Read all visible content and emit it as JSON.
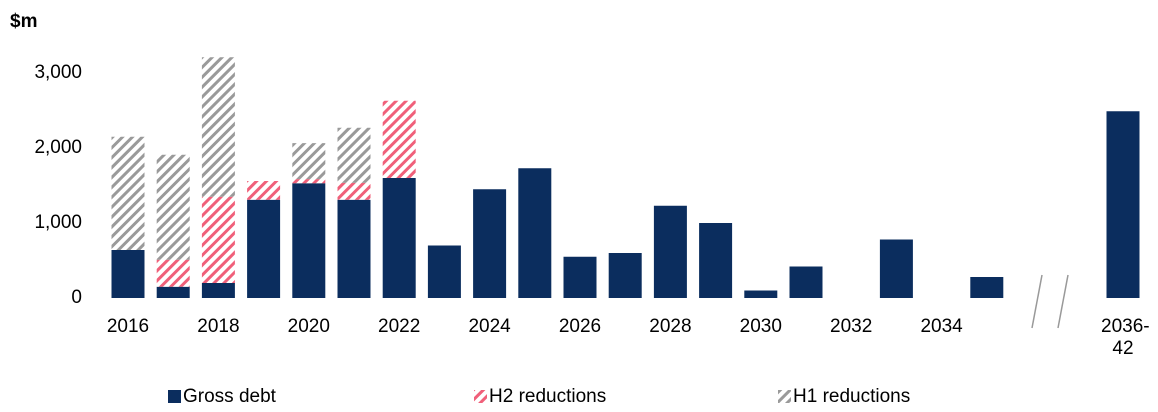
{
  "chart_data": {
    "type": "stacked_bar",
    "y_label": "$m",
    "categories": [
      "2016",
      null,
      "2018",
      null,
      "2020",
      null,
      "2022",
      null,
      "2024",
      null,
      "2026",
      null,
      "2028",
      null,
      "2030",
      null,
      "2032",
      null,
      "2034",
      null,
      "2036-42"
    ],
    "series": [
      {
        "name": "Gross debt",
        "color": "#0b2d5e",
        "pattern": "solid",
        "values": [
          640,
          150,
          200,
          1310,
          1530,
          1310,
          1600,
          700,
          1450,
          1730,
          550,
          600,
          1230,
          1000,
          100,
          420,
          0,
          780,
          0,
          280,
          2490
        ]
      },
      {
        "name": "H2 reductions",
        "color": "#f0607a",
        "pattern": "hatch",
        "values": [
          0,
          360,
          1150,
          250,
          55,
          225,
          1030,
          0,
          0,
          0,
          0,
          0,
          0,
          0,
          0,
          0,
          0,
          0,
          0,
          0,
          0
        ]
      },
      {
        "name": "H1 reductions",
        "color": "#9a9a9a",
        "pattern": "hatch",
        "values": [
          1510,
          1400,
          1860,
          0,
          480,
          735,
          0,
          0,
          0,
          0,
          0,
          0,
          0,
          0,
          0,
          0,
          0,
          0,
          0,
          0,
          0
        ]
      }
    ],
    "ylim": [
      0,
      3300
    ],
    "yticks": [
      0,
      {
        "value": 1000,
        "label": "1,000"
      },
      {
        "value": 2000,
        "label": "2,000"
      },
      {
        "value": 3000,
        "label": "3,000"
      }
    ],
    "axis_break_before_last": true,
    "legend": "bottom"
  }
}
